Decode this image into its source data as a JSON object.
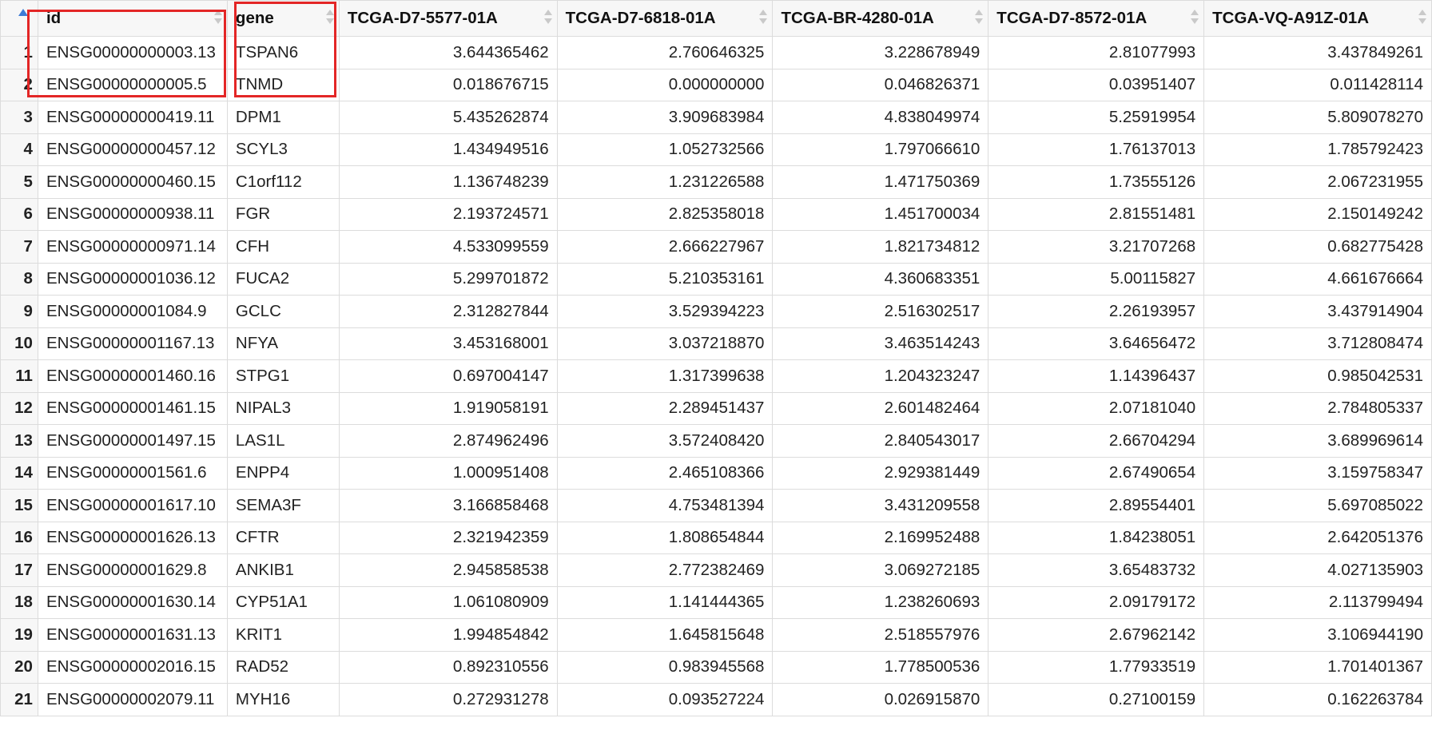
{
  "table": {
    "columns": [
      "id",
      "gene",
      "TCGA-D7-5577-01A",
      "TCGA-D7-6818-01A",
      "TCGA-BR-4280-01A",
      "TCGA-D7-8572-01A",
      "TCGA-VQ-A91Z-01A"
    ],
    "rows": [
      {
        "n": "1",
        "id": "ENSG00000000003.13",
        "gene": "TSPAN6",
        "v": [
          "3.644365462",
          "2.760646325",
          "3.228678949",
          "2.81077993",
          "3.437849261"
        ]
      },
      {
        "n": "2",
        "id": "ENSG00000000005.5",
        "gene": "TNMD",
        "v": [
          "0.018676715",
          "0.000000000",
          "0.046826371",
          "0.03951407",
          "0.011428114"
        ]
      },
      {
        "n": "3",
        "id": "ENSG00000000419.11",
        "gene": "DPM1",
        "v": [
          "5.435262874",
          "3.909683984",
          "4.838049974",
          "5.25919954",
          "5.809078270"
        ]
      },
      {
        "n": "4",
        "id": "ENSG00000000457.12",
        "gene": "SCYL3",
        "v": [
          "1.434949516",
          "1.052732566",
          "1.797066610",
          "1.76137013",
          "1.785792423"
        ]
      },
      {
        "n": "5",
        "id": "ENSG00000000460.15",
        "gene": "C1orf112",
        "v": [
          "1.136748239",
          "1.231226588",
          "1.471750369",
          "1.73555126",
          "2.067231955"
        ]
      },
      {
        "n": "6",
        "id": "ENSG00000000938.11",
        "gene": "FGR",
        "v": [
          "2.193724571",
          "2.825358018",
          "1.451700034",
          "2.81551481",
          "2.150149242"
        ]
      },
      {
        "n": "7",
        "id": "ENSG00000000971.14",
        "gene": "CFH",
        "v": [
          "4.533099559",
          "2.666227967",
          "1.821734812",
          "3.21707268",
          "0.682775428"
        ]
      },
      {
        "n": "8",
        "id": "ENSG00000001036.12",
        "gene": "FUCA2",
        "v": [
          "5.299701872",
          "5.210353161",
          "4.360683351",
          "5.00115827",
          "4.661676664"
        ]
      },
      {
        "n": "9",
        "id": "ENSG00000001084.9",
        "gene": "GCLC",
        "v": [
          "2.312827844",
          "3.529394223",
          "2.516302517",
          "2.26193957",
          "3.437914904"
        ]
      },
      {
        "n": "10",
        "id": "ENSG00000001167.13",
        "gene": "NFYA",
        "v": [
          "3.453168001",
          "3.037218870",
          "3.463514243",
          "3.64656472",
          "3.712808474"
        ]
      },
      {
        "n": "11",
        "id": "ENSG00000001460.16",
        "gene": "STPG1",
        "v": [
          "0.697004147",
          "1.317399638",
          "1.204323247",
          "1.14396437",
          "0.985042531"
        ]
      },
      {
        "n": "12",
        "id": "ENSG00000001461.15",
        "gene": "NIPAL3",
        "v": [
          "1.919058191",
          "2.289451437",
          "2.601482464",
          "2.07181040",
          "2.784805337"
        ]
      },
      {
        "n": "13",
        "id": "ENSG00000001497.15",
        "gene": "LAS1L",
        "v": [
          "2.874962496",
          "3.572408420",
          "2.840543017",
          "2.66704294",
          "3.689969614"
        ]
      },
      {
        "n": "14",
        "id": "ENSG00000001561.6",
        "gene": "ENPP4",
        "v": [
          "1.000951408",
          "2.465108366",
          "2.929381449",
          "2.67490654",
          "3.159758347"
        ]
      },
      {
        "n": "15",
        "id": "ENSG00000001617.10",
        "gene": "SEMA3F",
        "v": [
          "3.166858468",
          "4.753481394",
          "3.431209558",
          "2.89554401",
          "5.697085022"
        ]
      },
      {
        "n": "16",
        "id": "ENSG00000001626.13",
        "gene": "CFTR",
        "v": [
          "2.321942359",
          "1.808654844",
          "2.169952488",
          "1.84238051",
          "2.642051376"
        ]
      },
      {
        "n": "17",
        "id": "ENSG00000001629.8",
        "gene": "ANKIB1",
        "v": [
          "2.945858538",
          "2.772382469",
          "3.069272185",
          "3.65483732",
          "4.027135903"
        ]
      },
      {
        "n": "18",
        "id": "ENSG00000001630.14",
        "gene": "CYP51A1",
        "v": [
          "1.061080909",
          "1.141444365",
          "1.238260693",
          "2.09179172",
          "2.113799494"
        ]
      },
      {
        "n": "19",
        "id": "ENSG00000001631.13",
        "gene": "KRIT1",
        "v": [
          "1.994854842",
          "1.645815648",
          "2.518557976",
          "2.67962142",
          "3.106944190"
        ]
      },
      {
        "n": "20",
        "id": "ENSG00000002016.15",
        "gene": "RAD52",
        "v": [
          "0.892310556",
          "0.983945568",
          "1.778500536",
          "1.77933519",
          "1.701401367"
        ]
      },
      {
        "n": "21",
        "id": "ENSG00000002079.11",
        "gene": "MYH16",
        "v": [
          "0.272931278",
          "0.093527224",
          "0.026915870",
          "0.27100159",
          "0.162263784"
        ]
      }
    ]
  },
  "colors": {
    "highlight": "#e32626",
    "sort_arrow_active": "#3d7bd6",
    "header_bg": "#f7f7f7",
    "grid_line": "#dcdcdc"
  }
}
